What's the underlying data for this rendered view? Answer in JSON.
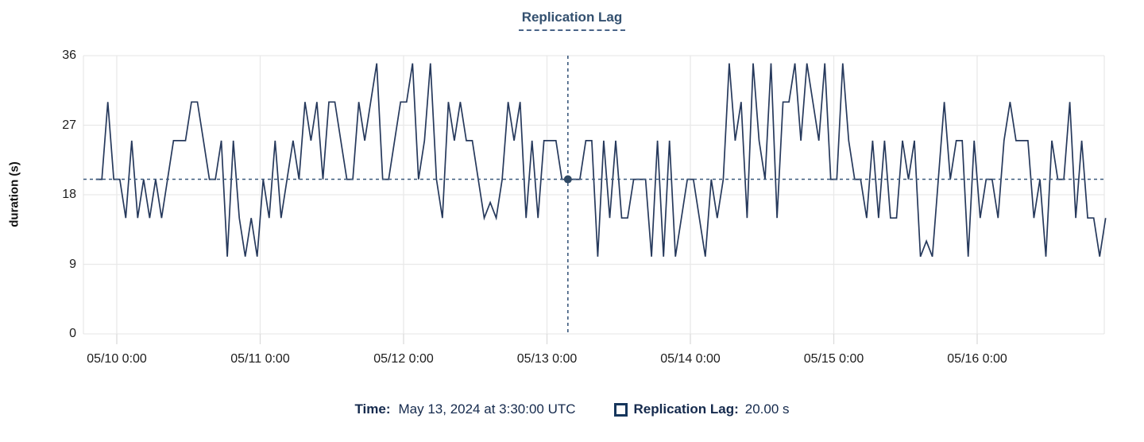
{
  "colors": {
    "background": "#ffffff",
    "line": "#26395c",
    "crosshair_dashed": "#3d5a7d",
    "marker_dot": "#2f4965",
    "grid": "#e9e9e9",
    "plot_border": "#e3e3e3",
    "tick_mark": "#dcdcdc",
    "title": "#33506f",
    "axis_text": "#1c1c1c",
    "legend_text": "#152a4d"
  },
  "tooltip": {
    "time_label": "Time:",
    "time_value": "May 13, 2024 at 3:30:00 UTC",
    "series_label": "Replication Lag:",
    "series_value": "20.00 s",
    "swatch_icon": "hollow-square"
  },
  "chart_data": {
    "type": "line",
    "title": "Replication Lag",
    "xlabel": "",
    "ylabel": "duration (s)",
    "ylim": [
      0,
      36
    ],
    "y_ticks": [
      36,
      27,
      18,
      9,
      0
    ],
    "x_ticks": [
      "05/10 0:00",
      "05/11 0:00",
      "05/12 0:00",
      "05/13 0:00",
      "05/14 0:00",
      "05/15 0:00",
      "05/16 0:00"
    ],
    "grid": true,
    "legend_position": "bottom",
    "reference_line_value": 20,
    "crosshair": {
      "time": "2024-05-13 03:30:00 UTC",
      "offset_hours_from_0510": 75.5,
      "value": 20
    },
    "series": [
      {
        "name": "Replication Lag",
        "unit": "s",
        "start_time": "2024-05-09 20:30 UTC",
        "interval": "1 hour",
        "start_offset_hours_from_0510": -3.5,
        "values": [
          20,
          20,
          30,
          20,
          20,
          15,
          25,
          15,
          20,
          15,
          20,
          15,
          20,
          25,
          25,
          25,
          30,
          30,
          25,
          20,
          20,
          25,
          10,
          25,
          15,
          10,
          15,
          10,
          20,
          15,
          25,
          15,
          20,
          25,
          20,
          30,
          25,
          30,
          20,
          30,
          30,
          25,
          20,
          20,
          30,
          25,
          30,
          35,
          20,
          20,
          25,
          30,
          30,
          35,
          20,
          25,
          35,
          20,
          15,
          30,
          25,
          30,
          25,
          25,
          20,
          15,
          17,
          15,
          20,
          30,
          25,
          30,
          15,
          25,
          15,
          25,
          25,
          25,
          20,
          20,
          20,
          20,
          25,
          25,
          10,
          25,
          15,
          25,
          15,
          15,
          20,
          20,
          20,
          10,
          25,
          10,
          25,
          10,
          15,
          20,
          20,
          15,
          10,
          20,
          15,
          20,
          35,
          25,
          30,
          15,
          35,
          25,
          20,
          35,
          15,
          30,
          30,
          35,
          25,
          35,
          30,
          25,
          35,
          20,
          20,
          35,
          25,
          20,
          20,
          15,
          25,
          15,
          25,
          15,
          15,
          25,
          20,
          25,
          10,
          12,
          10,
          20,
          30,
          20,
          25,
          25,
          10,
          25,
          15,
          20,
          20,
          15,
          25,
          30,
          25,
          25,
          25,
          15,
          20,
          10,
          25,
          20,
          20,
          30,
          15,
          25,
          15,
          15,
          10,
          15
        ]
      }
    ]
  }
}
